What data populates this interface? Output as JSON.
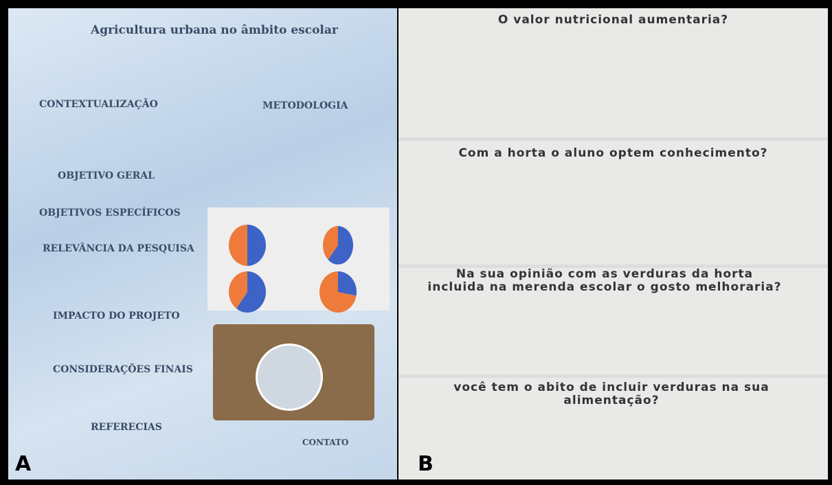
{
  "panels": {
    "a": "A",
    "b": "B"
  },
  "poster": {
    "title": "Agricultura urbana no âmbito escolar",
    "headings": [
      "CONTEXTUALIZAÇÃO",
      "METODOLOGIA",
      "OBJETIVO GERAL",
      "OBJETIVOS ESPECÍFICOS",
      "RELEVÂNCIA DA PESQUISA",
      "IMPACTO DO PROJETO",
      "CONSIDERAÇÕES FINAIS",
      "REFERECIAS",
      "CONTATO"
    ]
  },
  "chart_data": [
    {
      "type": "pie",
      "title": "O valor nutricional aumentaria?",
      "categories": [
        null,
        null
      ],
      "values": [
        50,
        50
      ],
      "colors": [
        "#3d63c6",
        "#ee7a3c"
      ]
    },
    {
      "type": "pie",
      "title": "Com a horta o aluno optem conhecimento?",
      "categories": [
        null,
        null
      ],
      "values": [
        61.5,
        38.5
      ],
      "colors": [
        "#3d63c6",
        "#ee7a3c"
      ]
    },
    {
      "type": "pie",
      "title": "Na sua opinião com as verduras da horta incluida na merenda escolar o gosto melhoraria?",
      "categories": [
        null,
        null
      ],
      "values": [
        60,
        40
      ],
      "colors": [
        "#3d63c6",
        "#ee7a3c"
      ]
    },
    {
      "type": "pie",
      "title": "você tem o abito de incluir verduras na sua alimentação?",
      "categories": [
        null,
        null
      ],
      "values": [
        28,
        72
      ],
      "colors": [
        "#3d63c6",
        "#ee7a3c"
      ]
    }
  ]
}
